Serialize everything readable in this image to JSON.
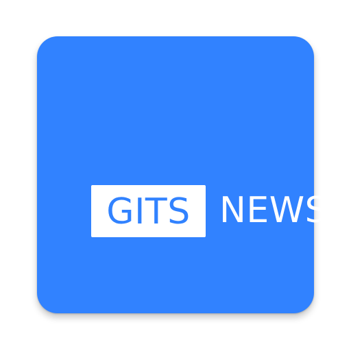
{
  "app_icon": {
    "name_part_1": "GITS",
    "name_part_2": "NEWS",
    "colors": {
      "background": "#3182ff",
      "box": "#ffffff",
      "text_in_box": "#3182ff",
      "text_outside_box": "#ffffff"
    }
  }
}
